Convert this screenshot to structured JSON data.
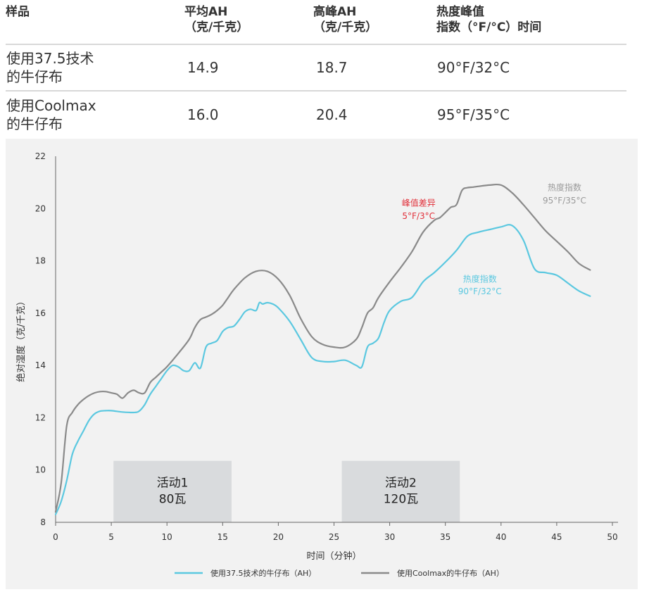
{
  "table": {
    "headers": [
      "样品",
      "平均AH\n（克/千克）",
      "高峰AH\n（克/千克）",
      "热度峰值\n指数（°F/°C）时间"
    ],
    "rows": [
      [
        "使用37.5技术\n的牛仔布",
        "14.9",
        "18.7",
        "90°F/32°C"
      ],
      [
        "使用Coolmax\n的牛仔布",
        "16.0",
        "20.4",
        "95°F/35°C"
      ]
    ]
  },
  "chart_data": {
    "type": "line",
    "xlabel": "时间（分钟）",
    "ylabel": "绝对湿度（克/千克）",
    "xlim": [
      0,
      50
    ],
    "ylim": [
      8,
      22
    ],
    "xticks": [
      0,
      5,
      10,
      15,
      20,
      25,
      30,
      35,
      40,
      45,
      50
    ],
    "yticks": [
      8,
      10,
      12,
      14,
      16,
      18,
      20,
      22
    ],
    "legend_position": "bottom",
    "series": [
      {
        "name": "使用37.5技术的牛仔布（AH）",
        "color": "#5bc8e0",
        "x": [
          0,
          0.5,
          1,
          1.5,
          2,
          2.5,
          3,
          3.5,
          4,
          4.5,
          5,
          6,
          7,
          7.5,
          8,
          8.5,
          9,
          9.5,
          10,
          10.5,
          11,
          11.5,
          12,
          12.5,
          13,
          13.5,
          14,
          14.5,
          15,
          15.5,
          16,
          16.5,
          17,
          17.5,
          18,
          18.3,
          18.6,
          19,
          19.5,
          20,
          21,
          22,
          23,
          24,
          25,
          26,
          27,
          27.5,
          28,
          28.5,
          29,
          29.5,
          30,
          31,
          32,
          33,
          34,
          35,
          36,
          37,
          38,
          39,
          40,
          41,
          42,
          43,
          44,
          45,
          46,
          47,
          48
        ],
        "y": [
          8.3,
          8.8,
          9.6,
          10.6,
          11.1,
          11.5,
          11.9,
          12.15,
          12.25,
          12.27,
          12.27,
          12.22,
          12.2,
          12.25,
          12.5,
          12.9,
          13.2,
          13.5,
          13.8,
          14.0,
          13.95,
          13.8,
          13.8,
          14.1,
          13.9,
          14.7,
          14.85,
          14.95,
          15.3,
          15.45,
          15.5,
          15.75,
          16.05,
          16.15,
          16.1,
          16.4,
          16.35,
          16.4,
          16.35,
          16.2,
          15.7,
          15.0,
          14.3,
          14.15,
          14.15,
          14.2,
          14.0,
          13.95,
          14.7,
          14.85,
          15.05,
          15.65,
          16.1,
          16.45,
          16.6,
          17.2,
          17.55,
          17.95,
          18.4,
          18.95,
          19.1,
          19.2,
          19.3,
          19.35,
          18.8,
          17.7,
          17.55,
          17.45,
          17.15,
          16.85,
          16.65
        ]
      },
      {
        "name": "使用Coolmax的牛仔布（AH）",
        "color": "#8a8a8a",
        "x": [
          0,
          0.5,
          1,
          1.5,
          2,
          2.5,
          3,
          3.5,
          4,
          4.5,
          5,
          5.5,
          6,
          6.5,
          7,
          7.5,
          8,
          8.5,
          9,
          9.5,
          10,
          11,
          12,
          12.5,
          13,
          13.5,
          14,
          14.5,
          15,
          15.5,
          16,
          17,
          18,
          19,
          20,
          21,
          22,
          23,
          24,
          25,
          26,
          27,
          27.5,
          28,
          28.5,
          29,
          30,
          31,
          32,
          33,
          34,
          34.5,
          35,
          35.5,
          36,
          36.5,
          37,
          37.5,
          38,
          39,
          40,
          41,
          42,
          43,
          44,
          45,
          46,
          47,
          48
        ],
        "y": [
          8.4,
          9.5,
          11.7,
          12.2,
          12.5,
          12.7,
          12.85,
          12.95,
          13.0,
          13.0,
          12.95,
          12.9,
          12.75,
          12.95,
          13.05,
          12.95,
          12.95,
          13.35,
          13.55,
          13.75,
          13.95,
          14.45,
          15.0,
          15.45,
          15.75,
          15.85,
          15.95,
          16.1,
          16.3,
          16.6,
          16.9,
          17.35,
          17.6,
          17.6,
          17.3,
          16.7,
          15.8,
          15.1,
          14.8,
          14.7,
          14.7,
          15.0,
          15.45,
          16.0,
          16.2,
          16.6,
          17.2,
          17.75,
          18.35,
          19.1,
          19.55,
          19.65,
          19.85,
          20.05,
          20.15,
          20.7,
          20.8,
          20.82,
          20.85,
          20.9,
          20.9,
          20.6,
          20.15,
          19.65,
          19.15,
          18.75,
          18.35,
          17.9,
          17.65
        ]
      }
    ],
    "activity_blocks": [
      {
        "label": "活动1",
        "sublabel": "80瓦",
        "x_start": 5.2,
        "x_end": 15.8,
        "color": "#d9dbdd"
      },
      {
        "label": "活动2",
        "sublabel": "120瓦",
        "x_start": 25.7,
        "x_end": 36.3,
        "color": "#d9dbdd"
      }
    ],
    "annotations": [
      {
        "text": "峰值差异",
        "color": "#e1303a"
      },
      {
        "text": "5°F/3°C",
        "color": "#e1303a"
      },
      {
        "text": "热度指数",
        "color": "#9a9a9a"
      },
      {
        "text": "95°F/35°C",
        "color": "#9a9a9a"
      },
      {
        "text": "热度指数",
        "color": "#5bc8e0"
      },
      {
        "text": "90°F/32°C",
        "color": "#5bc8e0"
      }
    ],
    "grid": false
  }
}
